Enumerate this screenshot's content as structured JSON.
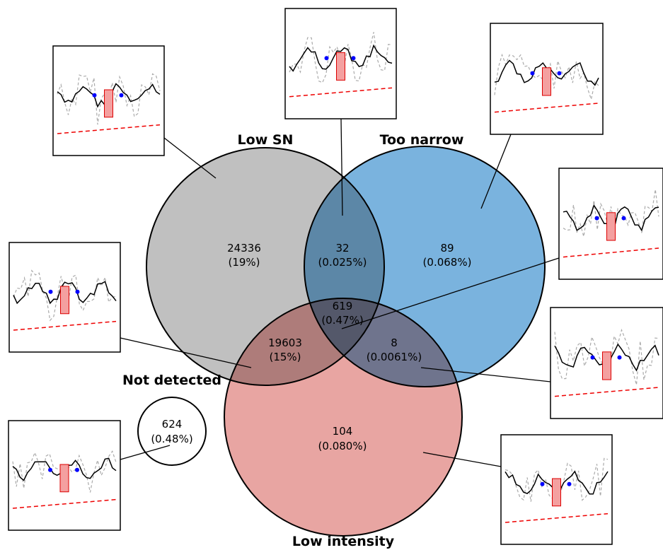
{
  "sets": [
    {
      "label": "Low SN"
    },
    {
      "label": "Too narrow"
    },
    {
      "label": "Low intensity"
    },
    {
      "label": "Not detected"
    }
  ],
  "regions": [
    {
      "count": "24336",
      "percent": "(19%)"
    },
    {
      "count": "32",
      "percent": "(0.025%)"
    },
    {
      "count": "89",
      "percent": "(0.068%)"
    },
    {
      "count": "619",
      "percent": "(0.47%)"
    },
    {
      "count": "19603",
      "percent": "(15%)"
    },
    {
      "count": "8",
      "percent": "(0.0061%)"
    },
    {
      "count": "104",
      "percent": "(0.080%)"
    },
    {
      "count": "624",
      "percent": "(0.48%)"
    }
  ]
}
